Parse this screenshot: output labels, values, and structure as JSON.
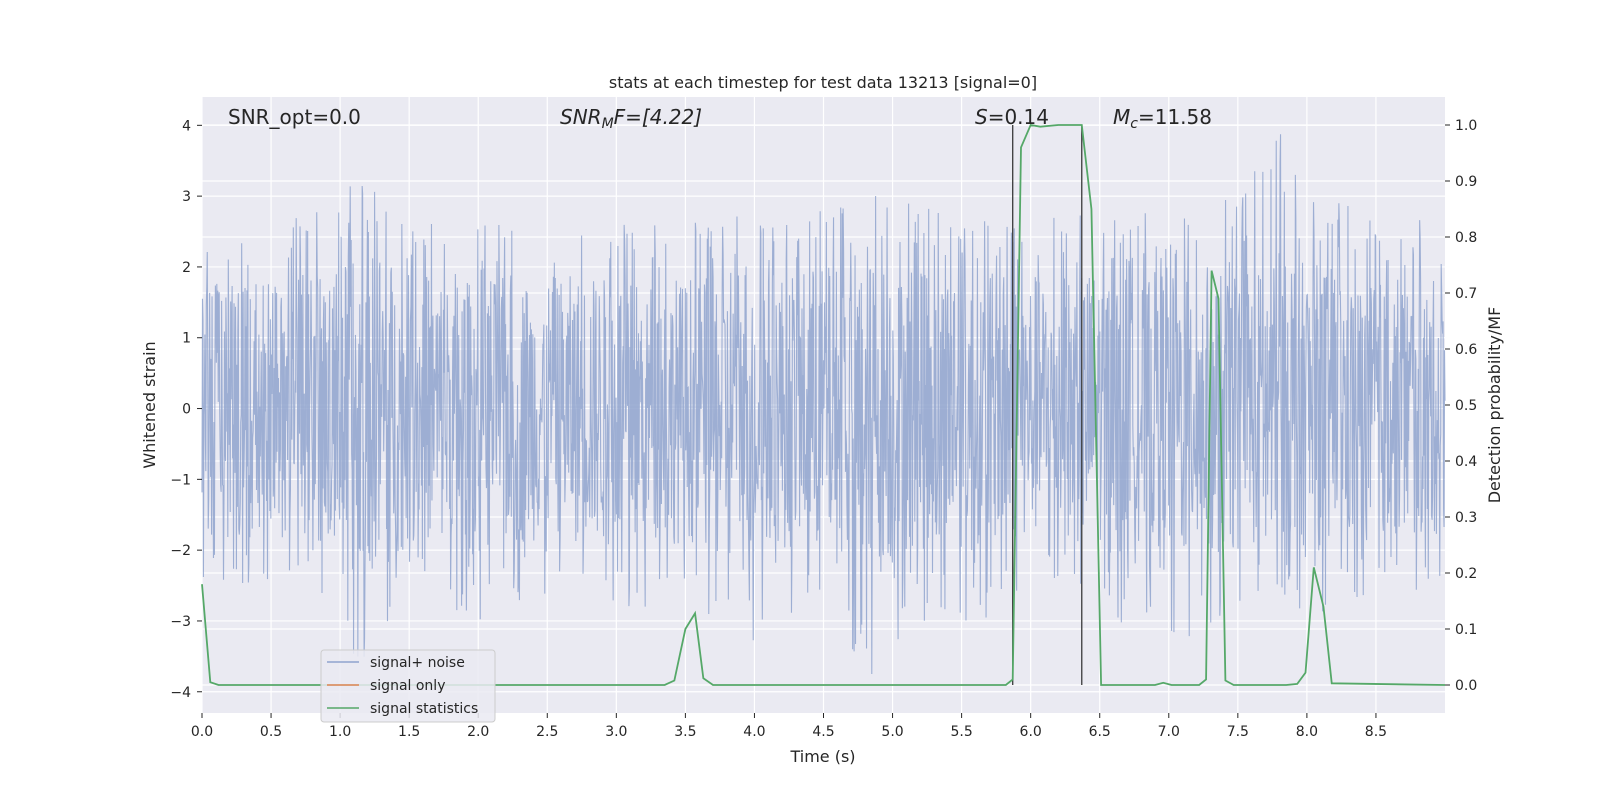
{
  "chart_data": {
    "type": "line",
    "title": "stats at each timestep for test data 13213 [signal=0]",
    "xlabel": "Time (s)",
    "ylabel": "Whitened strain",
    "ylabel_right": "Detection probability/MF",
    "xlim": [
      0.0,
      9.0
    ],
    "ylim": [
      -4.3,
      4.4
    ],
    "ylim_right": [
      -0.05,
      1.05
    ],
    "x_ticks": [
      "0.0",
      "0.5",
      "1.0",
      "1.5",
      "2.0",
      "2.5",
      "3.0",
      "3.5",
      "4.0",
      "4.5",
      "5.0",
      "5.5",
      "6.0",
      "6.5",
      "7.0",
      "7.5",
      "8.0",
      "8.5"
    ],
    "y_ticks": [
      "4",
      "3",
      "2",
      "1",
      "0",
      "−1",
      "−2",
      "−3",
      "−4"
    ],
    "y_right_ticks": [
      "1.0",
      "0.9",
      "0.8",
      "0.7",
      "0.6",
      "0.5",
      "0.4",
      "0.3",
      "0.2",
      "0.1",
      "0.0"
    ],
    "grid": true,
    "legend_position": "lower-left",
    "annotations": {
      "snr_opt": "SNR_opt=0.0",
      "snr_mf_label": "SNR",
      "snr_mf_sub": "M",
      "snr_mf_tail": "F=[4.22]",
      "s_label": "S",
      "s_value": "=0.14",
      "mc_label": "M",
      "mc_sub": "c",
      "mc_value": "=11.58"
    },
    "vlines_x": [
      5.87,
      6.37
    ],
    "series": [
      {
        "name": "signal+ noise",
        "color": "#8fa3ce",
        "noise_upper_envelope": {
          "x": [
            0.0,
            0.5,
            1.0,
            1.1,
            1.5,
            2.0,
            2.5,
            3.0,
            3.5,
            4.0,
            4.5,
            4.9,
            5.5,
            6.0,
            6.5,
            7.0,
            7.5,
            7.8,
            8.0,
            8.5,
            9.0
          ],
          "y": [
            2.7,
            2.6,
            2.9,
            3.4,
            2.7,
            2.6,
            2.7,
            2.7,
            2.6,
            2.8,
            2.9,
            3.1,
            2.7,
            2.8,
            2.7,
            2.8,
            3.0,
            4.0,
            3.3,
            2.6,
            2.7
          ]
        },
        "noise_lower_envelope": {
          "x": [
            0.0,
            0.5,
            1.0,
            1.1,
            1.2,
            1.5,
            2.0,
            2.5,
            3.0,
            3.5,
            3.9,
            4.5,
            4.9,
            5.5,
            6.0,
            6.5,
            7.0,
            7.5,
            8.0,
            8.5,
            9.0
          ],
          "y": [
            -2.6,
            -2.6,
            -2.7,
            -3.6,
            -3.9,
            -2.7,
            -3.0,
            -2.6,
            -2.9,
            -2.7,
            -3.4,
            -2.9,
            -3.9,
            -3.3,
            -2.6,
            -2.9,
            -3.4,
            -2.8,
            -3.0,
            -2.6,
            -2.6
          ]
        }
      },
      {
        "name": "signal only",
        "color": "#dd8452",
        "values": []
      },
      {
        "name": "signal statistics",
        "color": "#55a868",
        "axis": "right",
        "x": [
          0.0,
          0.06,
          0.12,
          3.35,
          3.42,
          3.5,
          3.57,
          3.63,
          3.7,
          5.82,
          5.87,
          5.93,
          6.0,
          6.07,
          6.2,
          6.37,
          6.44,
          6.51,
          6.9,
          6.96,
          7.02,
          7.22,
          7.27,
          7.31,
          7.36,
          7.41,
          7.47,
          7.85,
          7.93,
          7.99,
          8.05,
          8.12,
          8.18,
          9.0
        ],
        "y": [
          0.18,
          0.005,
          0.0,
          0.0,
          0.008,
          0.1,
          0.128,
          0.012,
          0.0,
          0.0,
          0.01,
          0.96,
          1.0,
          0.997,
          1.0,
          1.0,
          0.85,
          0.0,
          0.0,
          0.004,
          0.0,
          0.0,
          0.01,
          0.74,
          0.69,
          0.008,
          0.0,
          0.0,
          0.002,
          0.022,
          0.21,
          0.14,
          0.003,
          0.0
        ]
      }
    ]
  }
}
